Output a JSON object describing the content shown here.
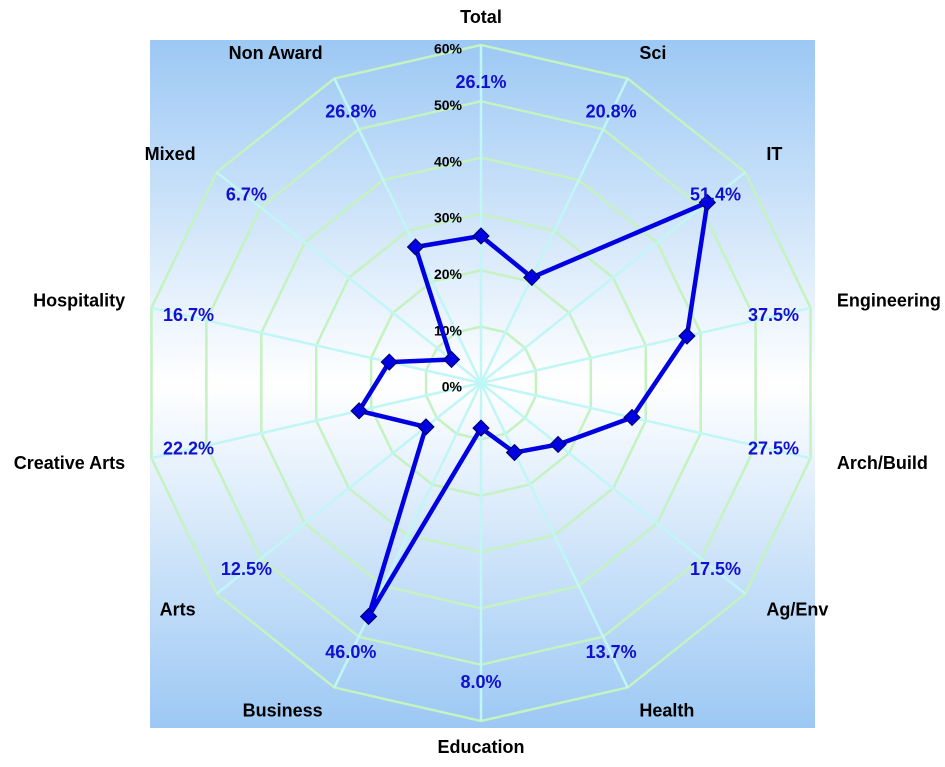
{
  "chart_data": {
    "type": "radar",
    "categories": [
      "Total",
      "Sci",
      "IT",
      "Engineering",
      "Arch/Build",
      "Ag/Env",
      "Health",
      "Education",
      "Business",
      "Arts",
      "Creative Arts",
      "Hospitality",
      "Mixed",
      "Non Award"
    ],
    "series": [
      {
        "color": "#0000e0",
        "values": [
          26.1,
          20.8,
          51.4,
          37.5,
          27.5,
          17.5,
          13.7,
          8.0,
          46.0,
          12.5,
          22.2,
          16.7,
          6.7,
          26.8
        ],
        "value_labels": [
          "26.1%",
          "20.8%",
          "51.4%",
          "37.5%",
          "27.5%",
          "17.5%",
          "13.7%",
          "8.0%",
          "46.0%",
          "12.5%",
          "22.2%",
          "16.7%",
          "6.7%",
          "26.8%"
        ]
      }
    ],
    "ylim": [
      0,
      60
    ],
    "yticks": [
      {
        "value": 0,
        "label": "0%"
      },
      {
        "value": 10,
        "label": "10%"
      },
      {
        "value": 20,
        "label": "20%"
      },
      {
        "value": 30,
        "label": "30%"
      },
      {
        "value": 40,
        "label": "40%"
      },
      {
        "value": 50,
        "label": "50%"
      },
      {
        "value": 60,
        "label": "60%"
      }
    ],
    "grid": true
  }
}
